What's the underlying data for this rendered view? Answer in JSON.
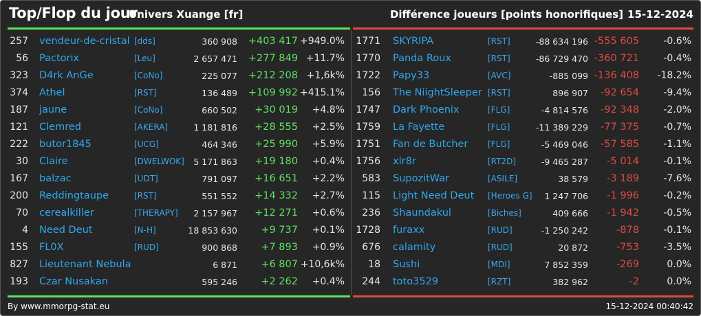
{
  "header": {
    "title": "Top/Flop du jour",
    "universe": "Univers Xuange [fr]",
    "metric": "Différence joueurs [points honorifiques]",
    "date": "15-12-2024"
  },
  "top": [
    {
      "rank": "257",
      "name": "vendeur-de-cristal",
      "ally": "[dds]",
      "points": "360 908",
      "diff": "+403 417",
      "pct": "+949.0%"
    },
    {
      "rank": "56",
      "name": "Pactorix",
      "ally": "[Leu]",
      "points": "2 657 471",
      "diff": "+277 849",
      "pct": "+11.7%"
    },
    {
      "rank": "323",
      "name": "D4rk AnGe",
      "ally": "[CoNo]",
      "points": "225 077",
      "diff": "+212 208",
      "pct": "+1,6k%"
    },
    {
      "rank": "374",
      "name": "Athel",
      "ally": "[RST]",
      "points": "136 489",
      "diff": "+109 992",
      "pct": "+415.1%"
    },
    {
      "rank": "187",
      "name": "jaune",
      "ally": "[CoNo]",
      "points": "660 502",
      "diff": "+30 019",
      "pct": "+4.8%"
    },
    {
      "rank": "121",
      "name": "Clemred",
      "ally": "[AKERA]",
      "points": "1 181 816",
      "diff": "+28 555",
      "pct": "+2.5%"
    },
    {
      "rank": "222",
      "name": "butor1845",
      "ally": "[UCG]",
      "points": "464 346",
      "diff": "+25 990",
      "pct": "+5.9%"
    },
    {
      "rank": "30",
      "name": "Claire",
      "ally": "[DWELWOK]",
      "points": "5 171 863",
      "diff": "+19 180",
      "pct": "+0.4%"
    },
    {
      "rank": "167",
      "name": "balzac",
      "ally": "[UDT]",
      "points": "791 097",
      "diff": "+16 651",
      "pct": "+2.2%"
    },
    {
      "rank": "200",
      "name": "Reddingtaupe",
      "ally": "[RST]",
      "points": "551 552",
      "diff": "+14 332",
      "pct": "+2.7%"
    },
    {
      "rank": "70",
      "name": "cerealkiller",
      "ally": "[THERAPY]",
      "points": "2 157 967",
      "diff": "+12 271",
      "pct": "+0.6%"
    },
    {
      "rank": "4",
      "name": "Need Deut",
      "ally": "[N-H]",
      "points": "18 853 630",
      "diff": "+9 737",
      "pct": "+0.1%"
    },
    {
      "rank": "155",
      "name": "FL0X",
      "ally": "[RUD]",
      "points": "900 868",
      "diff": "+7 893",
      "pct": "+0.9%"
    },
    {
      "rank": "827",
      "name": "Lieutenant Nebula",
      "ally": "",
      "points": "6 871",
      "diff": "+6 807",
      "pct": "+10,6k%"
    },
    {
      "rank": "193",
      "name": "Czar Nusakan",
      "ally": "",
      "points": "595 246",
      "diff": "+2 262",
      "pct": "+0.4%"
    }
  ],
  "flop": [
    {
      "rank": "1771",
      "name": "SKYRIPA",
      "ally": "[RST]",
      "points": "-88 634 196",
      "diff": "-555 605",
      "pct": "-0.6%"
    },
    {
      "rank": "1770",
      "name": "Panda Roux",
      "ally": "[RST]",
      "points": "-86 729 470",
      "diff": "-360 721",
      "pct": "-0.4%"
    },
    {
      "rank": "1722",
      "name": "Papy33",
      "ally": "[AVC]",
      "points": "-885 099",
      "diff": "-136 408",
      "pct": "-18.2%"
    },
    {
      "rank": "156",
      "name": "The NiightSleeper",
      "ally": "[RST]",
      "points": "896 907",
      "diff": "-92 654",
      "pct": "-9.4%"
    },
    {
      "rank": "1747",
      "name": "Dark Phoenix",
      "ally": "[FLG]",
      "points": "-4 814 576",
      "diff": "-92 348",
      "pct": "-2.0%"
    },
    {
      "rank": "1759",
      "name": "La Fayette",
      "ally": "[FLG]",
      "points": "-11 389 229",
      "diff": "-77 375",
      "pct": "-0.7%"
    },
    {
      "rank": "1751",
      "name": "Fan de Butcher",
      "ally": "[FLG]",
      "points": "-5 469 046",
      "diff": "-57 585",
      "pct": "-1.1%"
    },
    {
      "rank": "1756",
      "name": "xlr8r",
      "ally": "[RT2D]",
      "points": "-9 465 287",
      "diff": "-5 014",
      "pct": "-0.1%"
    },
    {
      "rank": "583",
      "name": "SupozitWar",
      "ally": "[ASILE]",
      "points": "38 579",
      "diff": "-3 189",
      "pct": "-7.6%"
    },
    {
      "rank": "115",
      "name": "Light Need Deut",
      "ally": "[Heroes G]",
      "points": "1 247 706",
      "diff": "-1 996",
      "pct": "-0.2%"
    },
    {
      "rank": "236",
      "name": "Shaundakul",
      "ally": "[Biches]",
      "points": "409 666",
      "diff": "-1 942",
      "pct": "-0.5%"
    },
    {
      "rank": "1728",
      "name": "furaxx",
      "ally": "[RUD]",
      "points": "-1 250 242",
      "diff": "-878",
      "pct": "-0.1%"
    },
    {
      "rank": "676",
      "name": "calamity",
      "ally": "[RUD]",
      "points": "20 872",
      "diff": "-753",
      "pct": "-3.5%"
    },
    {
      "rank": "18",
      "name": "Sushi",
      "ally": "[MDI]",
      "points": "7 852 359",
      "diff": "-269",
      "pct": "0.0%"
    },
    {
      "rank": "244",
      "name": "toto3529",
      "ally": "[RZT]",
      "points": "382 962",
      "diff": "-2",
      "pct": "0.0%"
    }
  ],
  "footer": {
    "source": "By www.mmorpg-stat.eu",
    "timestamp": "15-12-2024 00:40:42"
  },
  "colors": {
    "background": "#262626",
    "positive": "#5fe35f",
    "negative": "#e04a44",
    "link": "#2fa8ee"
  }
}
